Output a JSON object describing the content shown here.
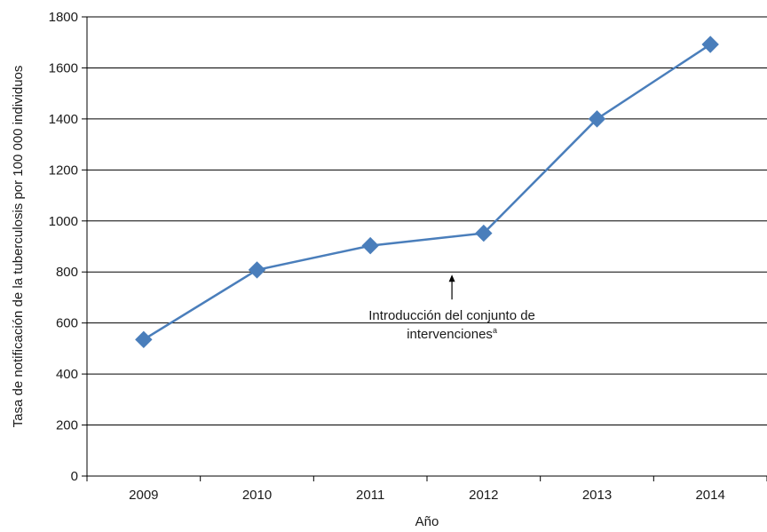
{
  "chart_data": {
    "type": "line",
    "title": "",
    "xlabel": "Año",
    "ylabel": "Tasa de notificación de la tuberculosis por 100 000 individuos",
    "categories": [
      "2009",
      "2010",
      "2011",
      "2012",
      "2013",
      "2014"
    ],
    "series": [
      {
        "values": [
          535,
          808,
          903,
          952,
          1400,
          1692
        ]
      }
    ],
    "ylim": [
      0,
      1800
    ],
    "yticks": [
      "0",
      "200",
      "400",
      "600",
      "800",
      "1000",
      "1200",
      "1400",
      "1600",
      "1800"
    ],
    "grid": "horizontal",
    "legend": "none",
    "line_color": "#4a7ebb",
    "marker_color": "#4a7ebb",
    "marker": "diamond",
    "annotation": {
      "line1": "Introducción del conjunto de",
      "line2": "intervenciones",
      "superscript": "a",
      "arrow_x": "2011.72",
      "arrow_y": 800
    }
  }
}
